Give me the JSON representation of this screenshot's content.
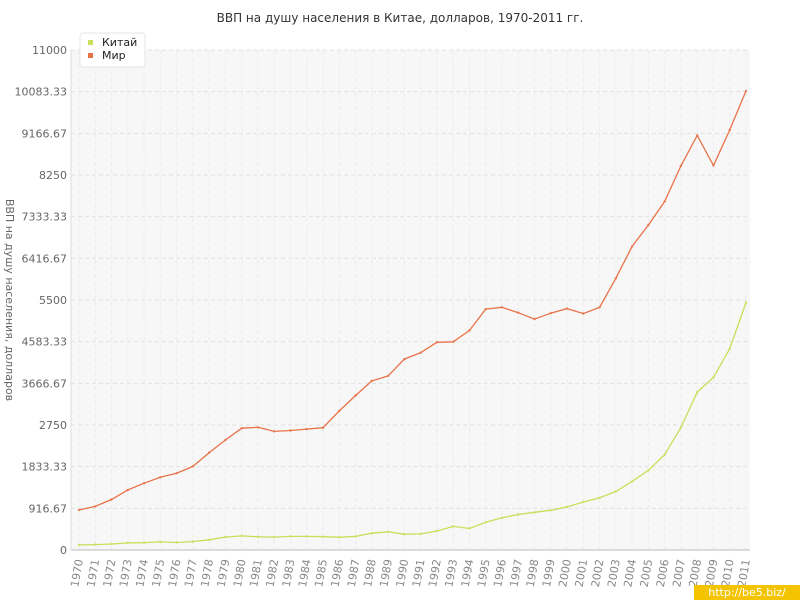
{
  "chart_data": {
    "type": "line",
    "title": "ВВП на душу населения в Китае, долларов, 1970-2011 гг.",
    "ylabel": "ВВП на душу населения, долларов",
    "xlabel": "",
    "ylim": [
      0,
      11000
    ],
    "yticks": [
      "0",
      "916.67",
      "1833.33",
      "2750",
      "3666.67",
      "4583.33",
      "5500",
      "6416.67",
      "7333.33",
      "8250",
      "9166.67",
      "10083.33",
      "11000"
    ],
    "x": [
      "1970",
      "1971",
      "1972",
      "1973",
      "1974",
      "1975",
      "1976",
      "1977",
      "1978",
      "1979",
      "1980",
      "1981",
      "1982",
      "1983",
      "1984",
      "1985",
      "1986",
      "1987",
      "1988",
      "1989",
      "1990",
      "1991",
      "1992",
      "1993",
      "1994",
      "1995",
      "1996",
      "1997",
      "1998",
      "1999",
      "2000",
      "2001",
      "2002",
      "2003",
      "2004",
      "2005",
      "2006",
      "2007",
      "2008",
      "2009",
      "2010",
      "2011"
    ],
    "grid": true,
    "legend_position": "top-left",
    "series": [
      {
        "name": "Китай",
        "color": "#c6e05a",
        "values": [
          112,
          118,
          132,
          157,
          160,
          178,
          165,
          185,
          224,
          284,
          310,
          290,
          283,
          300,
          300,
          292,
          282,
          300,
          369,
          400,
          348,
          355,
          419,
          520,
          473,
          609,
          709,
          782,
          829,
          873,
          949,
          1053,
          1149,
          1289,
          1509,
          1753,
          2099,
          2695,
          3471,
          3800,
          4428,
          5445
        ]
      },
      {
        "name": "Мир",
        "color": "#e8734a",
        "values": [
          880,
          960,
          1110,
          1320,
          1470,
          1600,
          1690,
          1840,
          2140,
          2420,
          2680,
          2700,
          2610,
          2630,
          2660,
          2690,
          3060,
          3400,
          3720,
          3830,
          4200,
          4340,
          4570,
          4580,
          4830,
          5300,
          5340,
          5220,
          5080,
          5210,
          5310,
          5200,
          5340,
          5980,
          6680,
          7150,
          7670,
          8450,
          9120,
          8460,
          9240,
          10100
        ]
      }
    ]
  },
  "watermark": "http://be5.biz/"
}
